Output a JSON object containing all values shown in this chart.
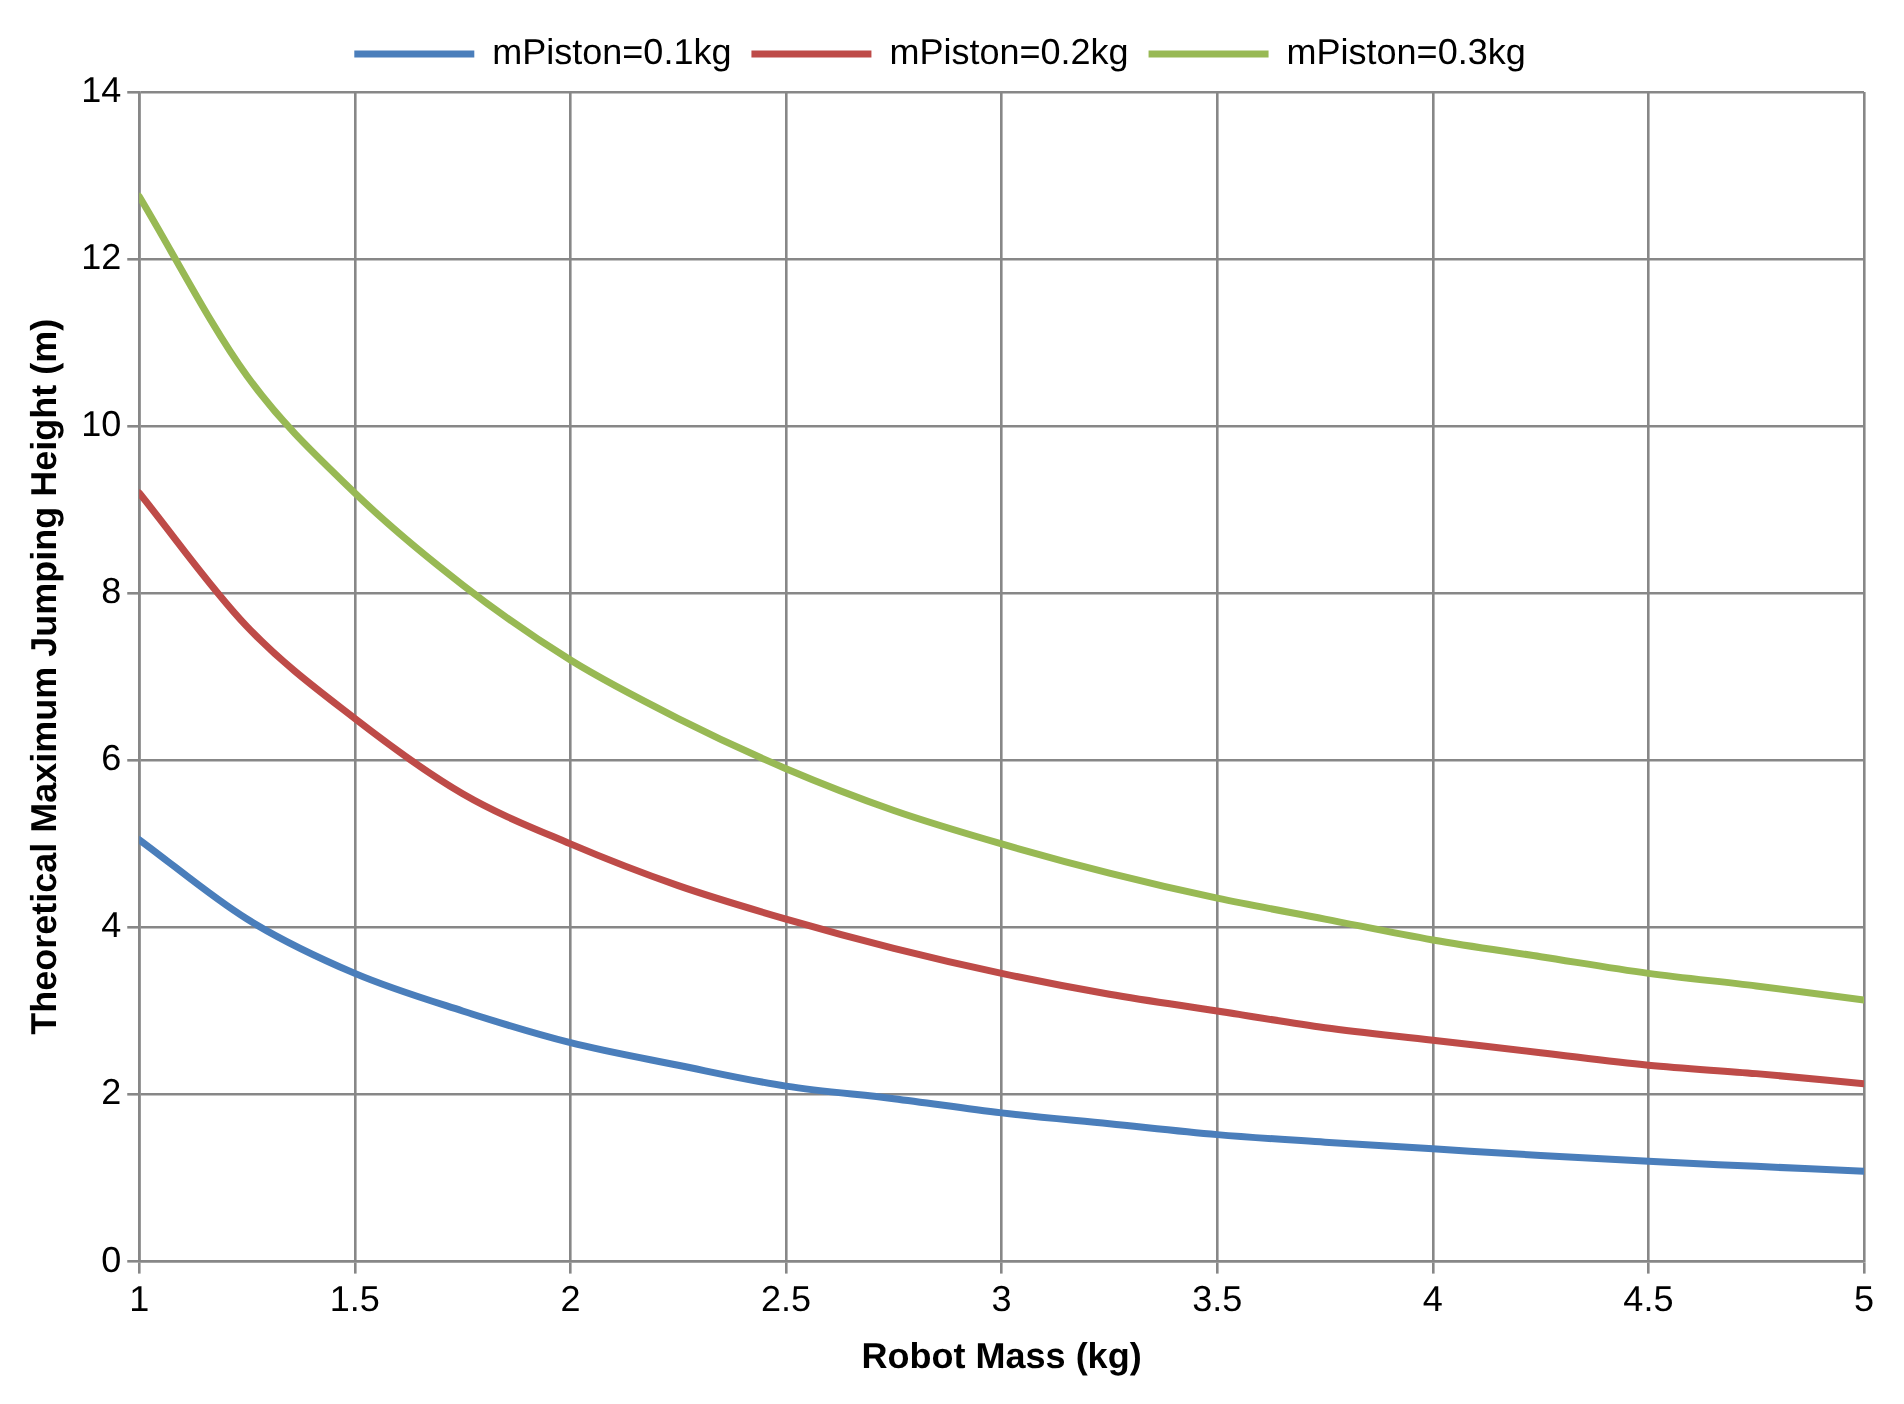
{
  "chart_data": {
    "type": "line",
    "xlabel": "Robot Mass (kg)",
    "ylabel": "Theoretical Maximum Jumping Height (m)",
    "x": [
      1,
      1.25,
      1.5,
      1.75,
      2,
      2.25,
      2.5,
      2.75,
      3,
      3.25,
      3.5,
      3.75,
      4,
      4.25,
      4.5,
      4.75,
      5
    ],
    "series": [
      {
        "name": "mPiston=0.1kg",
        "color": "#4a7ebb",
        "values": [
          5.05,
          4.1,
          3.45,
          3.0,
          2.62,
          2.35,
          2.1,
          1.95,
          1.78,
          1.65,
          1.52,
          1.43,
          1.35,
          1.27,
          1.2,
          1.14,
          1.08
        ]
      },
      {
        "name": "mPiston=0.2kg",
        "color": "#be4b48",
        "values": [
          9.2,
          7.6,
          6.5,
          5.6,
          5.0,
          4.5,
          4.1,
          3.75,
          3.45,
          3.2,
          3.0,
          2.8,
          2.65,
          2.5,
          2.35,
          2.25,
          2.13
        ]
      },
      {
        "name": "mPiston=0.3kg",
        "color": "#98b954",
        "values": [
          12.75,
          10.6,
          9.2,
          8.1,
          7.2,
          6.5,
          5.9,
          5.4,
          5.0,
          4.65,
          4.35,
          4.1,
          3.85,
          3.65,
          3.45,
          3.3,
          3.13
        ]
      }
    ],
    "xlim": [
      1,
      5
    ],
    "xticks": [
      1,
      1.5,
      2,
      2.5,
      3,
      3.5,
      4,
      4.5,
      5
    ],
    "ylim": [
      0,
      14
    ],
    "yticks": [
      0,
      2,
      4,
      6,
      8,
      10,
      12,
      14
    ],
    "grid": true,
    "legend": "top",
    "marker": "none",
    "line_style": "solid"
  }
}
